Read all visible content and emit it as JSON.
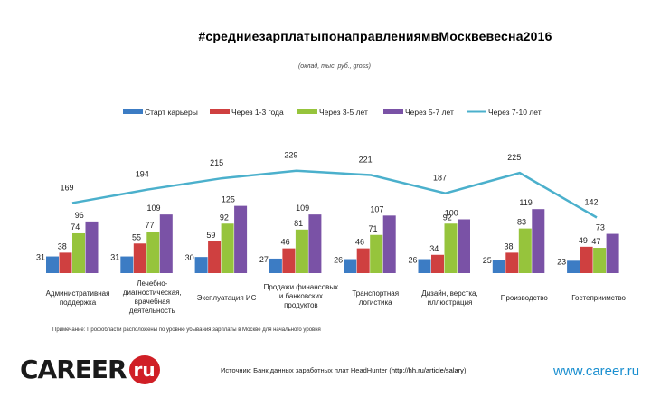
{
  "header": {
    "title": "#средниезарплатыпонаправлениямвМосквевесна2016",
    "subtitle": "(оклад, тыс. руб., gross)"
  },
  "colors": {
    "start": "#3c7cc4",
    "y1_3": "#cf4040",
    "y3_5": "#96c43c",
    "y5_7": "#7a52a6",
    "y7_10": "#4bb0cc"
  },
  "chart_data": {
    "type": "bar",
    "title": "#средниезарплатыпонаправлениямвМосквевесна2016",
    "subtitle": "(оклад, тыс. руб., gross)",
    "ylabel": "тыс. руб.",
    "categories": [
      "Административная поддержка",
      "Лечебно-диагностическая, врачебная деятельность",
      "Эксплуатация ИС",
      "Продажи финансовых и банковских продуктов",
      "Транспортная логистика",
      "Дизайн, верстка, иллюстрация",
      "Производство",
      "Гостеприимство"
    ],
    "category_lines": [
      [
        "Административная",
        "поддержка"
      ],
      [
        "Лечебно-",
        "диагностическая,",
        "врачебная",
        "деятельность"
      ],
      [
        "Эксплуатация ИС"
      ],
      [
        "Продажи финансовых",
        "и банковских",
        "продуктов"
      ],
      [
        "Транспортная",
        "логистика"
      ],
      [
        "Дизайн, верстка,",
        "иллюстрация"
      ],
      [
        "Производство"
      ],
      [
        "Гостеприимство"
      ]
    ],
    "series": [
      {
        "name": "Старт карьеры",
        "kind": "bar",
        "color_key": "start",
        "values": [
          31,
          31,
          30,
          27,
          26,
          26,
          25,
          23
        ]
      },
      {
        "name": "Через 1-3 года",
        "kind": "bar",
        "color_key": "y1_3",
        "values": [
          38,
          55,
          59,
          46,
          46,
          34,
          38,
          49
        ]
      },
      {
        "name": "Через 3-5 лет",
        "kind": "bar",
        "color_key": "y3_5",
        "values": [
          74,
          77,
          92,
          81,
          71,
          92,
          83,
          47
        ]
      },
      {
        "name": "Через 5-7 лет",
        "kind": "bar",
        "color_key": "y5_7",
        "values": [
          96,
          109,
          125,
          109,
          107,
          100,
          119,
          73
        ]
      },
      {
        "name": "Через 7-10 лет",
        "kind": "line",
        "color_key": "y7_10",
        "values": [
          169,
          194,
          215,
          229,
          221,
          187,
          225,
          142
        ]
      }
    ],
    "legend_position": "top"
  },
  "footer": {
    "note": "Примечание: Профобласти расположены по уровню убывания зарплаты в Москве для начального уровня",
    "logo_text": "CAREER",
    "logo_badge": "ru",
    "source_prefix": "Источник: Банк данных заработных плат HeadHunter (",
    "source_link": "http://hh.ru/article/salary",
    "source_suffix": ")",
    "site": "www.career.ru"
  }
}
